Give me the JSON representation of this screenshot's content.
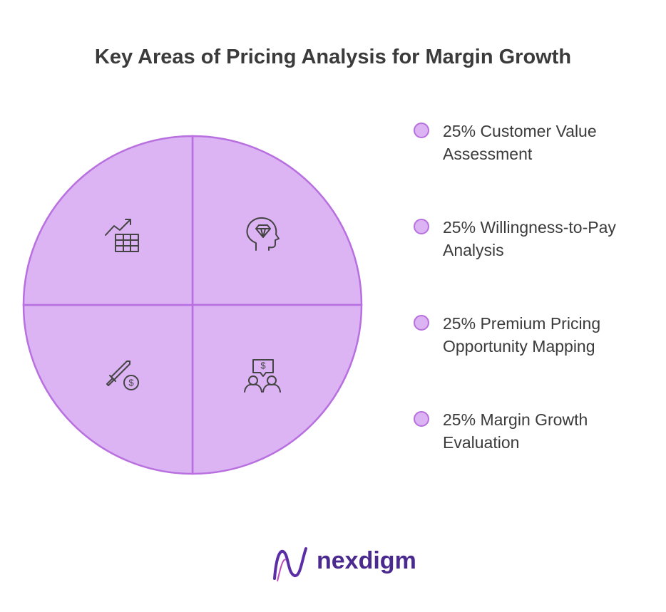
{
  "chart_data": {
    "type": "pie",
    "title": "Key Areas of Pricing Analysis for Margin Growth",
    "categories": [
      "Customer Value Assessment",
      "Willingness-to-Pay Analysis",
      "Premium Pricing Opportunity Mapping",
      "Margin Growth Evaluation"
    ],
    "values": [
      25,
      25,
      25,
      25
    ],
    "value_labels": [
      "25%",
      "25%",
      "25%",
      "25%"
    ],
    "color": "#dcb3f3",
    "edge_color": "#b86fdf",
    "logo": "nexdigm"
  }
}
